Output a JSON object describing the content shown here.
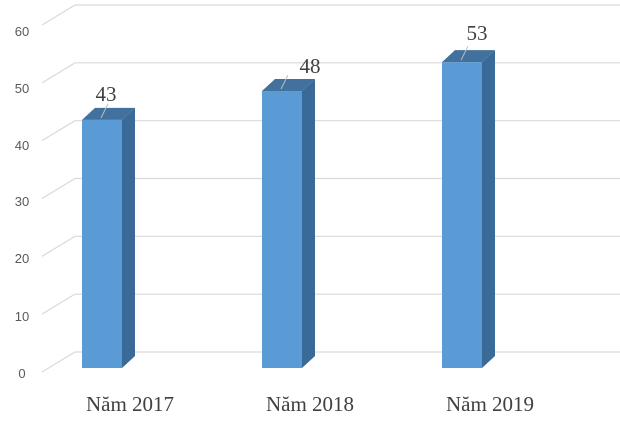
{
  "chart_data": {
    "type": "bar",
    "title": "",
    "xlabel": "",
    "ylabel": "",
    "categories": [
      "Năm 2017",
      "Năm 2018",
      "Năm 2019"
    ],
    "values": [
      43,
      48,
      53
    ],
    "data_labels": [
      "43",
      "48",
      "53"
    ],
    "ylim": [
      0,
      60
    ],
    "yticks": [
      0,
      10,
      20,
      30,
      40,
      50,
      60
    ],
    "grid": true,
    "legend": null,
    "style": "3d-column",
    "colors": {
      "bar_front": "#5B9BD5",
      "bar_side": "#3A6A98",
      "bar_top": "#41719C",
      "grid": "#D9D9D9"
    }
  },
  "yaxis": {
    "ticks": [
      "0",
      "10",
      "20",
      "30",
      "40",
      "50",
      "60"
    ]
  },
  "xaxis": {
    "labels": [
      "Năm 2017",
      "Năm 2018",
      "Năm 2019"
    ]
  },
  "labels": [
    "43",
    "48",
    "53"
  ]
}
